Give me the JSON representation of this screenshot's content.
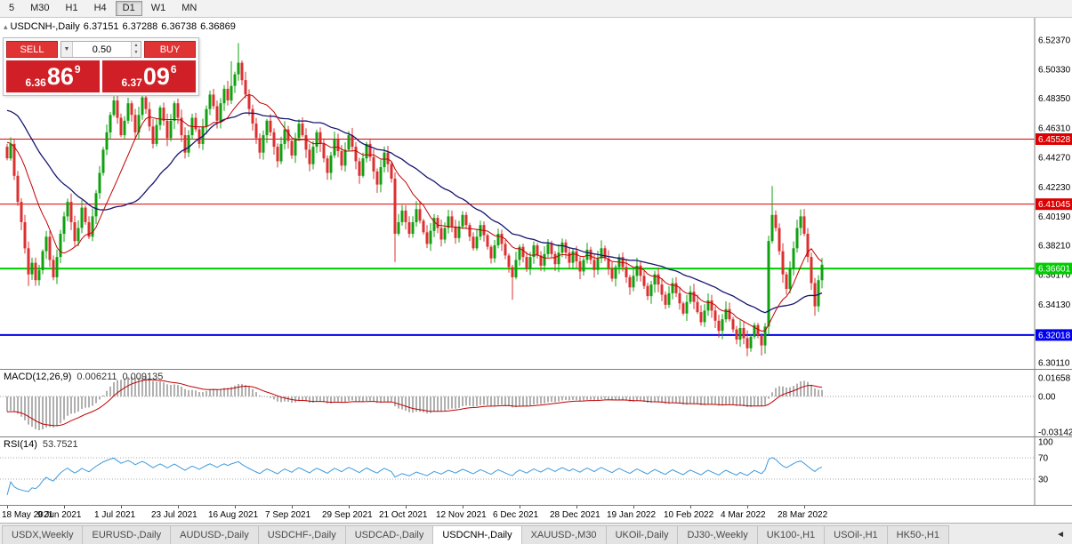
{
  "toolbar": {
    "timeframes": [
      "5",
      "M30",
      "H1",
      "H4",
      "D1",
      "W1",
      "MN"
    ],
    "active": "D1"
  },
  "chart_header": {
    "symbol": "USDCNH-,Daily",
    "open": "6.37151",
    "high": "6.37288",
    "low": "6.36738",
    "close": "6.36869"
  },
  "trade_panel": {
    "sell_label": "SELL",
    "buy_label": "BUY",
    "volume": "0.50",
    "bid": {
      "prefix": "6.36",
      "big": "86",
      "sup": "9"
    },
    "ask": {
      "prefix": "6.37",
      "big": "09",
      "sup": "6"
    }
  },
  "macd": {
    "label": "MACD(12,26,9)",
    "value_main": "0.006211",
    "value_signal": "0.009135",
    "scale": [
      "0.01658",
      "0.00",
      "-0.03142"
    ]
  },
  "rsi": {
    "label": "RSI(14)",
    "value": "53.7521",
    "scale": [
      "100",
      "70",
      "30"
    ]
  },
  "price_scale": [
    "6.52370",
    "6.50330",
    "6.48350",
    "6.46310",
    "6.44270",
    "6.42230",
    "6.40190",
    "6.38210",
    "6.36170",
    "6.34130",
    "6.32090",
    "6.30110"
  ],
  "tabs": {
    "items": [
      "USDX,Weekly",
      "EURUSD-,Daily",
      "AUDUSD-,Daily",
      "USDCHF-,Daily",
      "USDCAD-,Daily",
      "USDCNH-,Daily",
      "XAUUSD-,M30",
      "UKOil-,Daily",
      "DJ30-,Weekly",
      "UK100-,H1",
      "USOil-,H1",
      "HK50-,H1"
    ],
    "active_index": 5,
    "scroll_arrow": "◄"
  },
  "chart_data": {
    "type": "candlestick",
    "symbol": "USDCNH-",
    "timeframe": "Daily",
    "title": "USDCNH-,Daily 6.37151 6.37288 6.36738 6.36869",
    "x_labels": [
      "18 May 2021",
      "9 Jun 2021",
      "1 Jul 2021",
      "23 Jul 2021",
      "16 Aug 2021",
      "7 Sep 2021",
      "29 Sep 2021",
      "21 Oct 2021",
      "12 Nov 2021",
      "6 Dec 2021",
      "28 Dec 2021",
      "19 Jan 2022",
      "10 Feb 2022",
      "4 Mar 2022",
      "28 Mar 2022"
    ],
    "label_every": 16,
    "ylim": [
      6.2968,
      6.539
    ],
    "first_open": 6.45,
    "pre_closes": [
      6.52,
      6.517,
      6.514,
      6.511,
      6.508,
      6.505,
      6.501,
      6.497,
      6.493,
      6.489,
      6.485,
      6.481,
      6.477,
      6.473,
      6.47,
      6.468,
      6.466,
      6.464,
      6.462,
      6.46,
      6.458,
      6.456,
      6.455,
      6.454,
      6.453,
      6.452,
      6.451,
      6.45,
      6.449,
      6.448
    ],
    "closes": [
      6.442,
      6.452,
      6.43,
      6.412,
      6.398,
      6.38,
      6.362,
      6.37,
      6.358,
      6.365,
      6.378,
      6.388,
      6.372,
      6.36,
      6.374,
      6.39,
      6.402,
      6.412,
      6.398,
      6.385,
      6.394,
      6.408,
      6.398,
      6.388,
      6.402,
      6.418,
      6.432,
      6.448,
      6.46,
      6.472,
      6.482,
      6.47,
      6.458,
      6.468,
      6.48,
      6.472,
      6.46,
      6.472,
      6.484,
      6.476,
      6.464,
      6.452,
      6.465,
      6.477,
      6.468,
      6.456,
      6.468,
      6.48,
      6.47,
      6.458,
      6.446,
      6.458,
      6.47,
      6.462,
      6.452,
      6.464,
      6.476,
      6.486,
      6.478,
      6.468,
      6.48,
      6.49,
      6.482,
      6.492,
      6.5,
      6.508,
      6.496,
      6.486,
      6.476,
      6.466,
      6.456,
      6.446,
      6.458,
      6.468,
      6.46,
      6.45,
      6.44,
      6.452,
      6.462,
      6.454,
      6.444,
      6.456,
      6.466,
      6.458,
      6.448,
      6.438,
      6.45,
      6.46,
      6.452,
      6.442,
      6.432,
      6.444,
      6.455,
      6.447,
      6.437,
      6.448,
      6.458,
      6.45,
      6.44,
      6.43,
      6.442,
      6.452,
      6.443,
      6.433,
      6.424,
      6.436,
      6.446,
      6.438,
      6.428,
      6.39,
      6.398,
      6.406,
      6.398,
      6.39,
      6.398,
      6.407,
      6.399,
      6.391,
      6.383,
      6.392,
      6.401,
      6.394,
      6.386,
      6.394,
      6.402,
      6.395,
      6.387,
      6.395,
      6.403,
      6.396,
      6.388,
      6.38,
      6.388,
      6.396,
      6.389,
      6.381,
      6.373,
      6.382,
      6.39,
      6.383,
      6.375,
      6.367,
      6.36,
      6.372,
      6.381,
      6.374,
      6.366,
      6.374,
      6.382,
      6.375,
      6.368,
      6.376,
      6.383,
      6.376,
      6.369,
      6.377,
      6.384,
      6.377,
      6.37,
      6.378,
      6.371,
      6.364,
      6.372,
      6.379,
      6.372,
      6.365,
      6.373,
      6.38,
      6.373,
      6.366,
      6.359,
      6.367,
      6.374,
      6.367,
      6.36,
      6.353,
      6.361,
      6.368,
      6.361,
      6.354,
      6.347,
      6.355,
      6.362,
      6.355,
      6.348,
      6.341,
      6.349,
      6.356,
      6.349,
      6.342,
      6.335,
      6.343,
      6.35,
      6.343,
      6.336,
      6.329,
      6.337,
      6.344,
      6.337,
      6.33,
      6.323,
      6.331,
      6.338,
      6.331,
      6.324,
      6.317,
      6.325,
      6.318,
      6.311,
      6.319,
      6.327,
      6.32,
      6.313,
      6.326,
      6.385,
      6.403,
      6.394,
      6.378,
      6.362,
      6.352,
      6.366,
      6.38,
      6.394,
      6.402,
      6.39,
      6.374,
      6.356,
      6.34,
      6.358,
      6.36869
    ],
    "wick_overrides": {
      "6": {
        "l": 6.354
      },
      "63": {
        "h": 6.509
      },
      "65": {
        "h": 6.5215
      },
      "109": {
        "l": 6.3705
      },
      "142": {
        "l": 6.3445
      },
      "208": {
        "l": 6.3055
      },
      "212": {
        "l": 6.306
      },
      "215": {
        "h": 6.423
      },
      "227": {
        "l": 6.3335
      }
    },
    "levels": [
      {
        "value": 6.45528,
        "label": "6.45528",
        "color": "#dd0000",
        "width": 1
      },
      {
        "value": 6.41045,
        "label": "6.41045",
        "color": "#dd0000",
        "width": 1
      },
      {
        "value": 6.36601,
        "label": "6.36601",
        "color": "#00cc00",
        "width": 2
      },
      {
        "value": 6.32018,
        "label": "6.32018",
        "color": "#0000ee",
        "width": 2
      }
    ],
    "ma_fast": {
      "period": 13,
      "color": "#c00000"
    },
    "ma_slow": {
      "period": 34,
      "color": "#161670"
    },
    "macd_params": [
      12,
      26,
      9
    ],
    "rsi_period": 14,
    "colors": {
      "up": "#10a010",
      "down": "#dc3030",
      "macd_bar": "#b0b0b0",
      "macd_signal": "#c00000",
      "rsi_line": "#3e9bdc",
      "badge_text": "#ffffff"
    }
  }
}
